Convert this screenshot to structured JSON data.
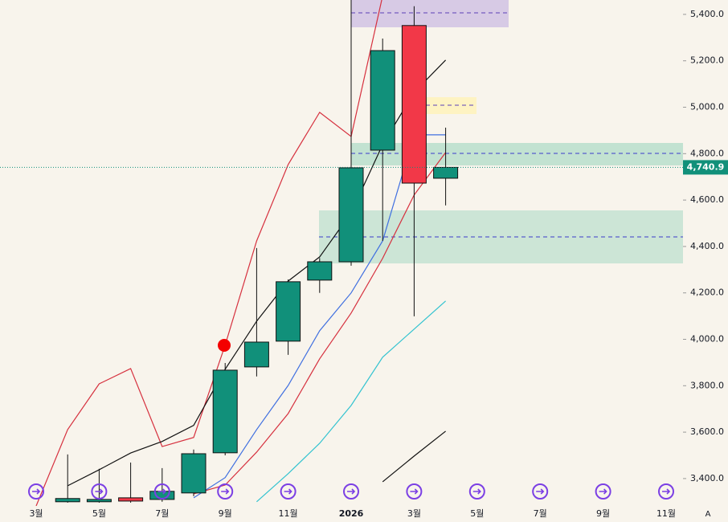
{
  "chart_data": {
    "type": "candlestick",
    "categories": [
      "3월",
      null,
      "5월",
      null,
      "7월",
      null,
      "9월",
      null,
      "11월",
      null,
      "2026",
      null,
      "3월",
      null,
      "5월",
      null,
      "7월",
      null,
      "9월",
      null,
      "11월"
    ],
    "open": [
      null,
      3300,
      3300,
      3317,
      3310,
      3338,
      3511,
      3881,
      3992,
      4255,
      4334,
      4815,
      5352,
      4694,
      null,
      null,
      null,
      null,
      null,
      null,
      null
    ],
    "high": [
      null,
      3504,
      3442,
      3469,
      3445,
      3525,
      3898,
      4393,
      4258,
      4350,
      5470,
      5296,
      5435,
      4912,
      null,
      null,
      null,
      null,
      null,
      null,
      null
    ],
    "low": [
      null,
      3296,
      3296,
      3296,
      3300,
      3324,
      3500,
      3840,
      3933,
      4200,
      4317,
      4424,
      4099,
      4577,
      null,
      null,
      null,
      null,
      null,
      null,
      null
    ],
    "close": [
      null,
      3314,
      3310,
      3303,
      3345,
      3507,
      3867,
      3988,
      4248,
      4334,
      4739,
      5244,
      4673,
      4740.9,
      null,
      null,
      null,
      null,
      null,
      null,
      null
    ],
    "up_color": "#11907a",
    "down_color": "#f23848",
    "series": [
      {
        "color": "#d6303e",
        "values": [
          3282,
          3611,
          3808,
          3874,
          3538,
          3577,
          3975,
          4424,
          4753,
          4978,
          4874,
          5480,
          null,
          null,
          null,
          null,
          null,
          null,
          null,
          null,
          null
        ]
      },
      {
        "color": "#d6303e",
        "values": [
          null,
          null,
          null,
          null,
          null,
          3334,
          3372,
          3514,
          3680,
          3916,
          4113,
          4349,
          4622,
          4805,
          null,
          null,
          null,
          null,
          null,
          null,
          null
        ]
      },
      {
        "color": "#3f6fe0",
        "values": [
          null,
          null,
          null,
          null,
          null,
          3317,
          3404,
          3611,
          3801,
          4037,
          4200,
          4424,
          4881,
          4881,
          null,
          null,
          null,
          null,
          null,
          null,
          null
        ]
      },
      {
        "color": "#33c3d0",
        "values": [
          null,
          null,
          null,
          null,
          null,
          null,
          null,
          3300,
          3421,
          3552,
          3715,
          3923,
          4044,
          4165,
          null,
          null,
          null,
          null,
          null,
          null,
          null
        ]
      },
      {
        "color": "#111111",
        "values": [
          null,
          3369,
          3438,
          3510,
          3560,
          3629,
          3871,
          4078,
          4251,
          4355,
          4545,
          4839,
          5064,
          5203,
          null,
          null,
          null,
          null,
          null,
          null,
          null
        ]
      },
      {
        "color": "#111111",
        "values": [
          null,
          null,
          null,
          null,
          null,
          null,
          null,
          null,
          null,
          null,
          null,
          3386,
          3497,
          3604,
          null,
          null,
          null,
          null,
          null,
          null,
          null
        ]
      }
    ],
    "last_price": {
      "value": 4740.9,
      "label": "4,740.9"
    },
    "ylim": [
      3282,
      5462
    ],
    "yticks": [
      {
        "value": 3400,
        "label": "3,400.0"
      },
      {
        "value": 3600,
        "label": "3,600.0"
      },
      {
        "value": 3800,
        "label": "3,800.0"
      },
      {
        "value": 4000,
        "label": "4,000.0"
      },
      {
        "value": 4200,
        "label": "4,200.0"
      },
      {
        "value": 4400,
        "label": "4,400.0"
      },
      {
        "value": 4600,
        "label": "4,600.0"
      },
      {
        "value": 4800,
        "label": "4,800.0"
      },
      {
        "value": 5000,
        "label": "5,000.0"
      },
      {
        "value": 5200,
        "label": "5,200.0"
      },
      {
        "value": 5400,
        "label": "5,400.0"
      }
    ],
    "scale_mode": "A"
  }
}
